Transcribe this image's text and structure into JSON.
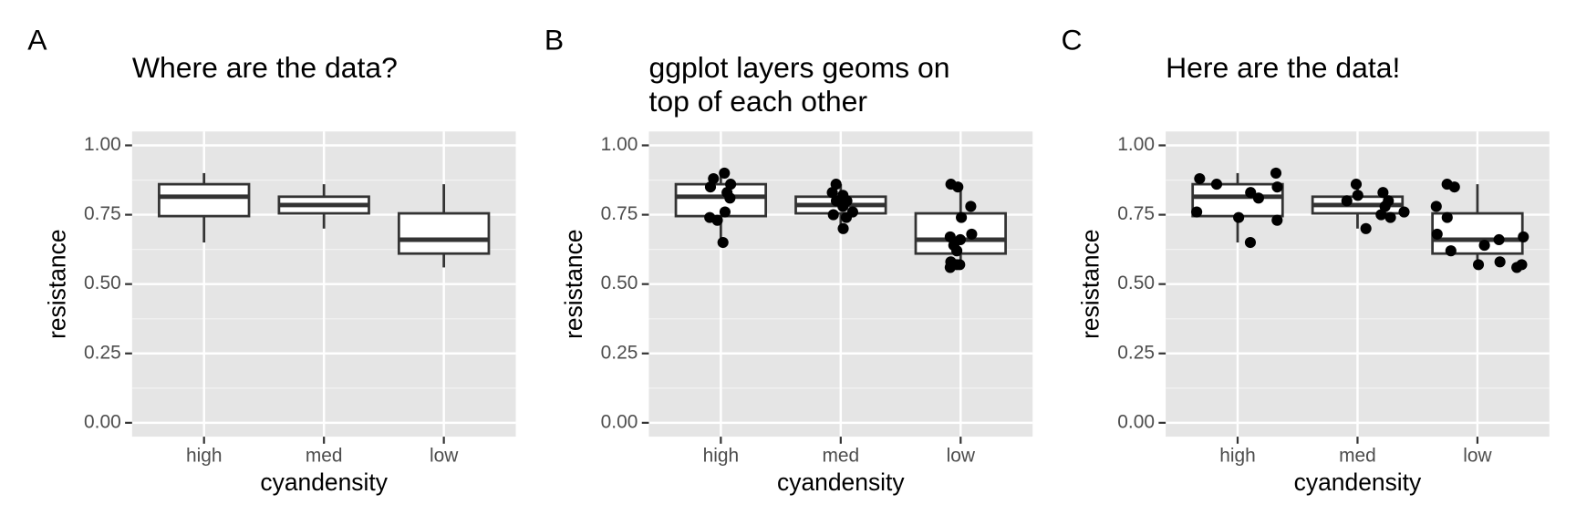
{
  "chart_data": [
    {
      "type": "box",
      "tag": "A",
      "title": "Where are the data?",
      "xlabel": "cyandensity",
      "ylabel": "resistance",
      "categories": [
        "high",
        "med",
        "low"
      ],
      "boxes": [
        {
          "low": 0.65,
          "q1": 0.745,
          "median": 0.815,
          "q3": 0.86,
          "high": 0.9
        },
        {
          "low": 0.7,
          "q1": 0.755,
          "median": 0.785,
          "q3": 0.815,
          "high": 0.86
        },
        {
          "low": 0.56,
          "q1": 0.61,
          "median": 0.66,
          "q3": 0.755,
          "high": 0.86
        }
      ],
      "ylim": [
        -0.05,
        1.05
      ],
      "yticks": [
        {
          "value": 0,
          "label": "0.00"
        },
        {
          "value": 0.25,
          "label": "0.25"
        },
        {
          "value": 0.5,
          "label": "0.50"
        },
        {
          "value": 0.75,
          "label": "0.75"
        },
        {
          "value": 1,
          "label": "1.00"
        }
      ],
      "grid": true
    },
    {
      "type": "box",
      "tag": "B",
      "title": "ggplot layers geoms on\ntop of each other",
      "xlabel": "cyandensity",
      "ylabel": "resistance",
      "categories": [
        "high",
        "med",
        "low"
      ],
      "boxes": [
        {
          "low": 0.65,
          "q1": 0.745,
          "median": 0.815,
          "q3": 0.86,
          "high": 0.9
        },
        {
          "low": 0.7,
          "q1": 0.755,
          "median": 0.785,
          "q3": 0.815,
          "high": 0.86
        },
        {
          "low": 0.56,
          "q1": 0.61,
          "median": 0.66,
          "q3": 0.755,
          "high": 0.86
        }
      ],
      "points": [
        [
          0.65,
          0.74,
          0.73,
          0.81,
          0.88,
          0.86,
          0.9,
          0.83,
          0.85,
          0.76
        ],
        [
          0.8,
          0.83,
          0.76,
          0.78,
          0.74,
          0.7,
          0.8,
          0.82,
          0.86,
          0.75
        ],
        [
          0.57,
          0.56,
          0.58,
          0.68,
          0.67,
          0.64,
          0.74,
          0.66,
          0.62,
          0.86,
          0.85,
          0.78,
          0.57
        ]
      ],
      "jitter": 0.1,
      "ylim": [
        -0.05,
        1.05
      ],
      "yticks": [
        {
          "value": 0,
          "label": "0.00"
        },
        {
          "value": 0.25,
          "label": "0.25"
        },
        {
          "value": 0.5,
          "label": "0.50"
        },
        {
          "value": 0.75,
          "label": "0.75"
        },
        {
          "value": 1,
          "label": "1.00"
        }
      ],
      "grid": true
    },
    {
      "type": "box",
      "tag": "C",
      "title": "Here are the data!",
      "xlabel": "cyandensity",
      "ylabel": "resistance",
      "categories": [
        "high",
        "med",
        "low"
      ],
      "boxes": [
        {
          "low": 0.65,
          "q1": 0.745,
          "median": 0.815,
          "q3": 0.86,
          "high": 0.9
        },
        {
          "low": 0.7,
          "q1": 0.755,
          "median": 0.785,
          "q3": 0.815,
          "high": 0.86
        },
        {
          "low": 0.56,
          "q1": 0.61,
          "median": 0.66,
          "q3": 0.755,
          "high": 0.86
        }
      ],
      "points": [
        [
          0.65,
          0.74,
          0.73,
          0.81,
          0.88,
          0.86,
          0.9,
          0.83,
          0.85,
          0.76
        ],
        [
          0.8,
          0.83,
          0.76,
          0.78,
          0.74,
          0.7,
          0.8,
          0.82,
          0.86,
          0.75
        ],
        [
          0.57,
          0.56,
          0.58,
          0.68,
          0.67,
          0.64,
          0.74,
          0.66,
          0.62,
          0.86,
          0.85,
          0.78,
          0.57
        ]
      ],
      "jitter": 0.4,
      "ylim": [
        -0.05,
        1.05
      ],
      "yticks": [
        {
          "value": 0,
          "label": "0.00"
        },
        {
          "value": 0.25,
          "label": "0.25"
        },
        {
          "value": 0.5,
          "label": "0.50"
        },
        {
          "value": 0.75,
          "label": "0.75"
        },
        {
          "value": 1,
          "label": "1.00"
        }
      ],
      "grid": true
    }
  ]
}
